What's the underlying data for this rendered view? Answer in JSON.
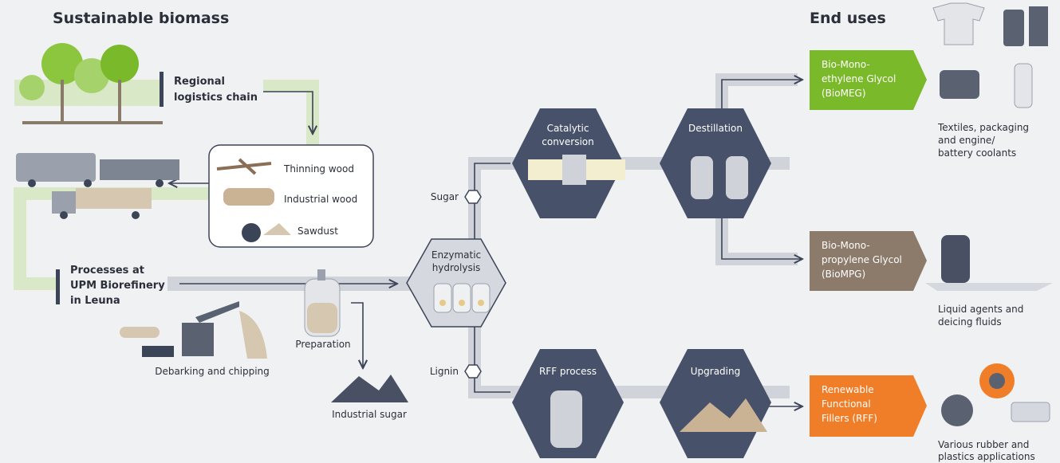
{
  "headings": {
    "left": "Sustainable biomass",
    "right": "End uses"
  },
  "logistics": [
    "Regional",
    "logistics chain"
  ],
  "feedstock": [
    "Thinning wood",
    "Industrial wood",
    "Sawdust"
  ],
  "processes_label": [
    "Processes at",
    "UPM Biorefinery",
    "in Leuna"
  ],
  "steps": {
    "debarking": "Debarking and chipping",
    "preparation": "Preparation",
    "industrial_sugar": "Industrial sugar"
  },
  "streams": {
    "sugar": "Sugar",
    "lignin": "Lignin"
  },
  "hydrolysis": [
    "Enzymatic",
    "hydrolysis"
  ],
  "processes": [
    {
      "lines": [
        "Catalytic",
        "conversion"
      ]
    },
    {
      "lines": [
        "Destillation"
      ]
    },
    {
      "lines": [
        "RFF process"
      ]
    },
    {
      "lines": [
        "Upgrading"
      ]
    }
  ],
  "products": [
    {
      "lines": [
        "Bio-Mono-",
        "ethylene Glycol",
        "(BioMEG)"
      ],
      "uses": [
        "Textiles, packaging",
        "and engine/",
        "battery coolants"
      ]
    },
    {
      "lines": [
        "Bio-Mono-",
        "propylene Glycol",
        "(BioMPG)"
      ],
      "uses": [
        "Liquid agents and",
        "deicing fluids"
      ]
    },
    {
      "lines": [
        "Renewable",
        "Functional",
        "Fillers (RFF)"
      ],
      "uses": [
        "Various rubber and",
        "plastics applications"
      ]
    }
  ]
}
